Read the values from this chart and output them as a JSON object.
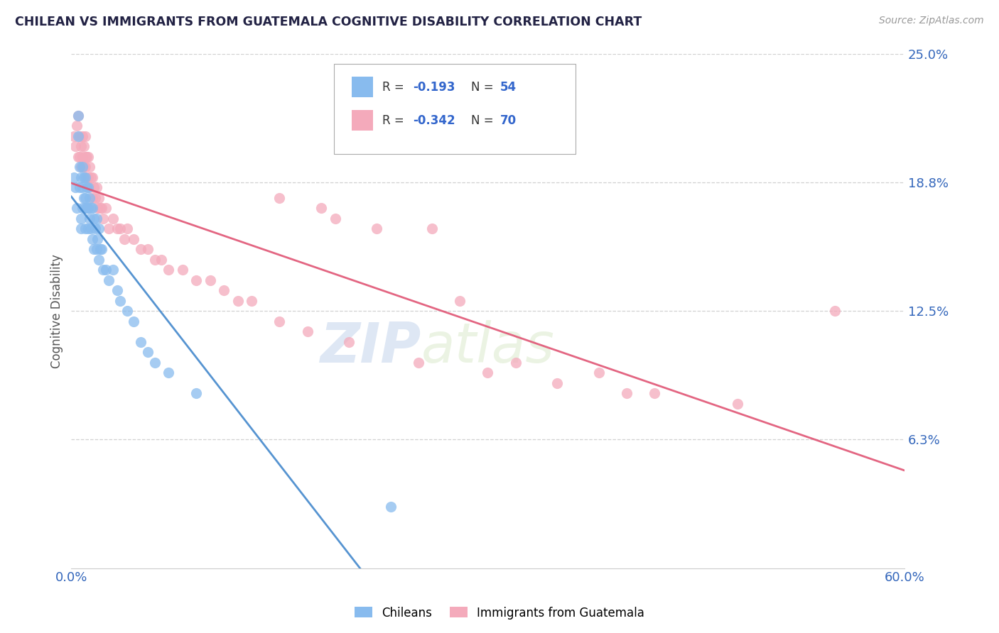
{
  "title": "CHILEAN VS IMMIGRANTS FROM GUATEMALA COGNITIVE DISABILITY CORRELATION CHART",
  "source_text": "Source: ZipAtlas.com",
  "ylabel": "Cognitive Disability",
  "xlim": [
    0.0,
    0.6
  ],
  "ylim": [
    0.0,
    0.25
  ],
  "yticks": [
    0.0625,
    0.125,
    0.1875,
    0.25
  ],
  "ytick_labels": [
    "6.3%",
    "12.5%",
    "18.8%",
    "25.0%"
  ],
  "xtick_labels": [
    "0.0%",
    "60.0%"
  ],
  "chilean_color": "#88bbee",
  "guatemala_color": "#f4aabb",
  "chilean_line_color": "#4488cc",
  "guatemala_line_color": "#e05575",
  "watermark_zip": "ZIP",
  "watermark_atlas": "atlas",
  "chilean_x": [
    0.002,
    0.003,
    0.004,
    0.005,
    0.005,
    0.006,
    0.006,
    0.007,
    0.007,
    0.007,
    0.008,
    0.008,
    0.008,
    0.009,
    0.009,
    0.01,
    0.01,
    0.01,
    0.01,
    0.011,
    0.011,
    0.012,
    0.012,
    0.012,
    0.013,
    0.013,
    0.014,
    0.014,
    0.015,
    0.015,
    0.016,
    0.016,
    0.017,
    0.018,
    0.018,
    0.019,
    0.02,
    0.02,
    0.021,
    0.022,
    0.023,
    0.025,
    0.027,
    0.03,
    0.033,
    0.035,
    0.04,
    0.045,
    0.05,
    0.055,
    0.06,
    0.07,
    0.09,
    0.23
  ],
  "chilean_y": [
    0.19,
    0.185,
    0.175,
    0.22,
    0.21,
    0.195,
    0.185,
    0.19,
    0.17,
    0.165,
    0.195,
    0.185,
    0.175,
    0.19,
    0.18,
    0.19,
    0.18,
    0.175,
    0.165,
    0.185,
    0.175,
    0.185,
    0.175,
    0.165,
    0.18,
    0.17,
    0.175,
    0.165,
    0.175,
    0.16,
    0.17,
    0.155,
    0.165,
    0.17,
    0.155,
    0.16,
    0.165,
    0.15,
    0.155,
    0.155,
    0.145,
    0.145,
    0.14,
    0.145,
    0.135,
    0.13,
    0.125,
    0.12,
    0.11,
    0.105,
    0.1,
    0.095,
    0.085,
    0.03
  ],
  "guatemala_x": [
    0.002,
    0.003,
    0.004,
    0.005,
    0.005,
    0.006,
    0.006,
    0.007,
    0.007,
    0.008,
    0.008,
    0.009,
    0.009,
    0.01,
    0.01,
    0.01,
    0.011,
    0.011,
    0.012,
    0.012,
    0.013,
    0.013,
    0.014,
    0.015,
    0.015,
    0.016,
    0.017,
    0.018,
    0.019,
    0.02,
    0.021,
    0.022,
    0.023,
    0.025,
    0.027,
    0.03,
    0.033,
    0.035,
    0.038,
    0.04,
    0.045,
    0.05,
    0.055,
    0.06,
    0.065,
    0.07,
    0.08,
    0.09,
    0.1,
    0.11,
    0.12,
    0.13,
    0.15,
    0.17,
    0.2,
    0.25,
    0.3,
    0.35,
    0.4,
    0.22,
    0.28,
    0.32,
    0.18,
    0.15,
    0.42,
    0.26,
    0.48,
    0.19,
    0.55,
    0.38
  ],
  "guatemala_y": [
    0.21,
    0.205,
    0.215,
    0.22,
    0.2,
    0.21,
    0.2,
    0.205,
    0.195,
    0.21,
    0.2,
    0.205,
    0.195,
    0.21,
    0.2,
    0.195,
    0.2,
    0.19,
    0.2,
    0.19,
    0.195,
    0.185,
    0.19,
    0.19,
    0.18,
    0.185,
    0.18,
    0.185,
    0.175,
    0.18,
    0.175,
    0.175,
    0.17,
    0.175,
    0.165,
    0.17,
    0.165,
    0.165,
    0.16,
    0.165,
    0.16,
    0.155,
    0.155,
    0.15,
    0.15,
    0.145,
    0.145,
    0.14,
    0.14,
    0.135,
    0.13,
    0.13,
    0.12,
    0.115,
    0.11,
    0.1,
    0.095,
    0.09,
    0.085,
    0.165,
    0.13,
    0.1,
    0.175,
    0.18,
    0.085,
    0.165,
    0.08,
    0.17,
    0.125,
    0.095
  ],
  "chilean_line_x0": 0.0,
  "chilean_line_x1": 0.23,
  "chilean_line_xdash0": 0.23,
  "chilean_line_xdash1": 0.6,
  "chilean_line_y_intercept": 0.193,
  "chilean_line_slope": -0.42,
  "guatemala_line_x0": 0.0,
  "guatemala_line_x1": 0.6,
  "guatemala_line_y_intercept": 0.197,
  "guatemala_line_slope": -0.1
}
